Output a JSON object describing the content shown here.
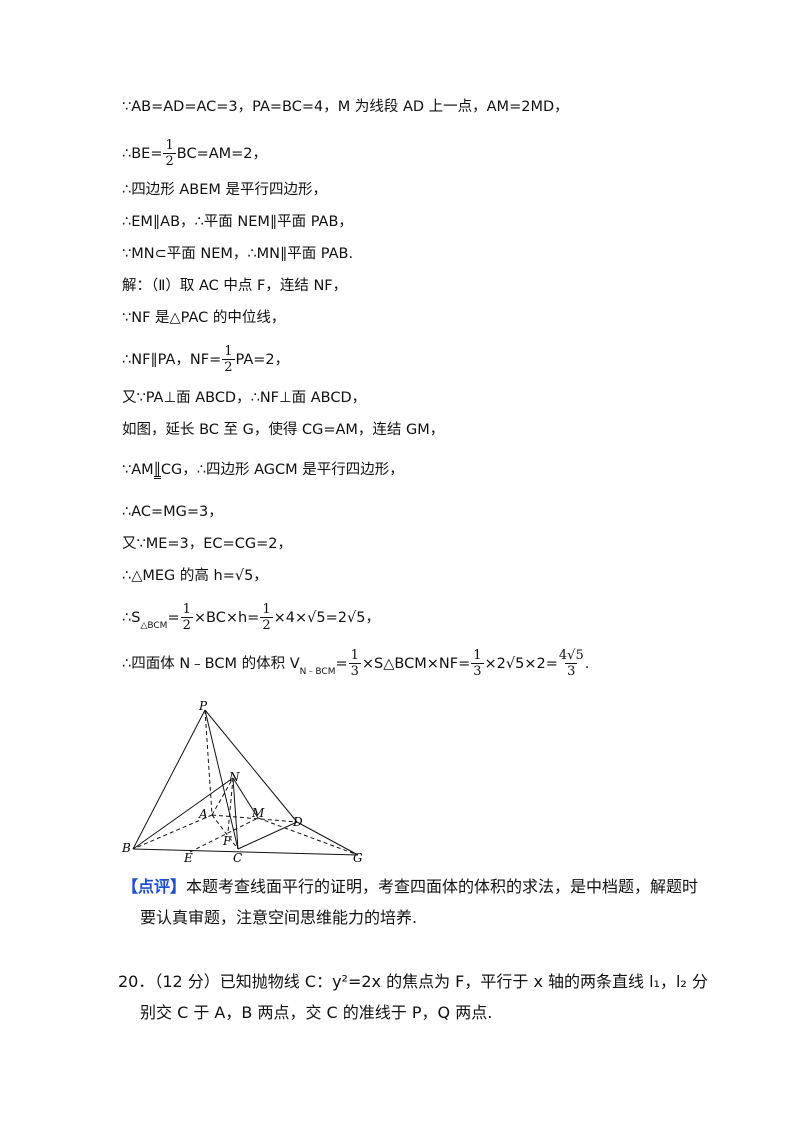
{
  "body": {
    "lines": [
      {
        "parts": [
          {
            "t": "∵AB=AD=AC=3，PA=BC=4，M 为线段 AD 上一点，AM=2MD，"
          }
        ]
      },
      {
        "parts": [
          {
            "t": "∴BE="
          },
          {
            "num": "1",
            "den": "2"
          },
          {
            "t": "BC=AM=2，"
          }
        ]
      },
      {
        "parts": [
          {
            "t": "∴四边形 ABEM 是平行四边形，"
          }
        ]
      },
      {
        "parts": [
          {
            "t": "∴EM∥AB，∴平面 NEM∥平面 PAB，"
          }
        ]
      },
      {
        "parts": [
          {
            "t": "∵MN⊂平面 NEM，∴MN∥平面 PAB."
          }
        ]
      },
      {
        "parts": [
          {
            "t": "解：（Ⅱ）取 AC 中点 F，连结 NF，"
          }
        ]
      },
      {
        "parts": [
          {
            "t": "∵NF 是△PAC 的中位线，"
          }
        ]
      },
      {
        "parts": [
          {
            "t": "∴NF∥PA，NF="
          },
          {
            "num": "1",
            "den": "2"
          },
          {
            "t": "PA=2，"
          }
        ]
      },
      {
        "parts": [
          {
            "t": "又∵PA⊥面 ABCD，∴NF⊥面 ABCD，"
          }
        ]
      },
      {
        "parts": [
          {
            "t": "如图，延长 BC 至 G，使得 CG=AM，连结 GM，"
          }
        ]
      },
      {
        "parts": [
          {
            "t": "∵AM"
          },
          {
            "sym": "∥"
          },
          {
            "t": "CG，∴四边形 AGCM 是平行四边形，"
          }
        ]
      },
      {
        "parts": [
          {
            "t": "∴AC=MG=3，"
          }
        ]
      },
      {
        "parts": [
          {
            "t": "又∵ME=3，EC=CG=2，"
          }
        ]
      },
      {
        "parts": [
          {
            "t": "∴△MEG 的高 h=√5，"
          }
        ]
      },
      {
        "parts": [
          {
            "t": "∴S"
          },
          {
            "sub": "△BCM"
          },
          {
            "t": "="
          },
          {
            "num": "1",
            "den": "2"
          },
          {
            "t": "×BC×h="
          },
          {
            "num": "1",
            "den": "2"
          },
          {
            "t": "×4×√5=2√5，"
          }
        ]
      },
      {
        "parts": [
          {
            "t": "∴四面体 N﹣BCM 的体积 V"
          },
          {
            "sub": "N﹣BCM"
          },
          {
            "t": "="
          },
          {
            "num": "1",
            "den": "3"
          },
          {
            "t": "×S△BCM×NF="
          },
          {
            "num": "1",
            "den": "3"
          },
          {
            "t": "×2√5×2="
          },
          {
            "num": "4√5",
            "den": "3"
          },
          {
            "t": "."
          }
        ]
      }
    ]
  },
  "figure": {
    "labels": [
      "P",
      "N",
      "A",
      "M",
      "D",
      "B",
      "E",
      "F",
      "C",
      "G"
    ]
  },
  "comment": {
    "tag": "【点评】",
    "text": "本题考查线面平行的证明，考查四面体的体积的求法，是中档题，解题时要认真审题，注意空间思维能力的培养."
  },
  "question": {
    "text": "20．（12 分）已知抛物线 C：y²=2x 的焦点为 F，平行于 x 轴的两条直线 l₁，l₂ 分别交 C 于 A，B 两点，交 C 的准线于 P，Q 两点."
  }
}
